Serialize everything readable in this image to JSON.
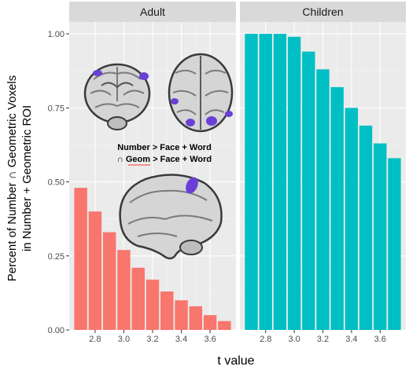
{
  "chart_data": {
    "type": "bar",
    "ylabel_lines": [
      "Percent of Number ∩ Geometric Voxels",
      "in Number + Geometric ROI"
    ],
    "xlabel": "t value",
    "ylim": [
      0,
      1.04
    ],
    "xlim": [
      2.62,
      3.78
    ],
    "y_ticks": [
      0.0,
      0.25,
      0.5,
      0.75,
      1.0
    ],
    "y_tick_labels": [
      "0.00",
      "0.25",
      "0.50",
      "0.75",
      "1.00"
    ],
    "x_ticks": [
      2.8,
      3.0,
      3.2,
      3.4,
      3.6
    ],
    "x_tick_labels": [
      "2.8",
      "3.0",
      "3.2",
      "3.4",
      "3.6"
    ],
    "grid": true,
    "x": [
      2.7,
      2.8,
      2.9,
      3.0,
      3.1,
      3.2,
      3.3,
      3.4,
      3.5,
      3.6,
      3.7
    ],
    "panels": [
      {
        "name": "Adult",
        "color": "#F8766D",
        "values": [
          0.48,
          0.4,
          0.33,
          0.27,
          0.21,
          0.17,
          0.13,
          0.1,
          0.08,
          0.05,
          0.03
        ]
      },
      {
        "name": "Children",
        "color": "#00BFC4",
        "values": [
          1.0,
          1.0,
          1.0,
          0.99,
          0.94,
          0.88,
          0.82,
          0.75,
          0.69,
          0.63,
          0.58
        ]
      }
    ],
    "annotation": {
      "line1": "Number > Face + Word",
      "line2_symbol": "∩",
      "line2_underlined": "Geom",
      "line2_rest": " > Face + Word"
    }
  }
}
